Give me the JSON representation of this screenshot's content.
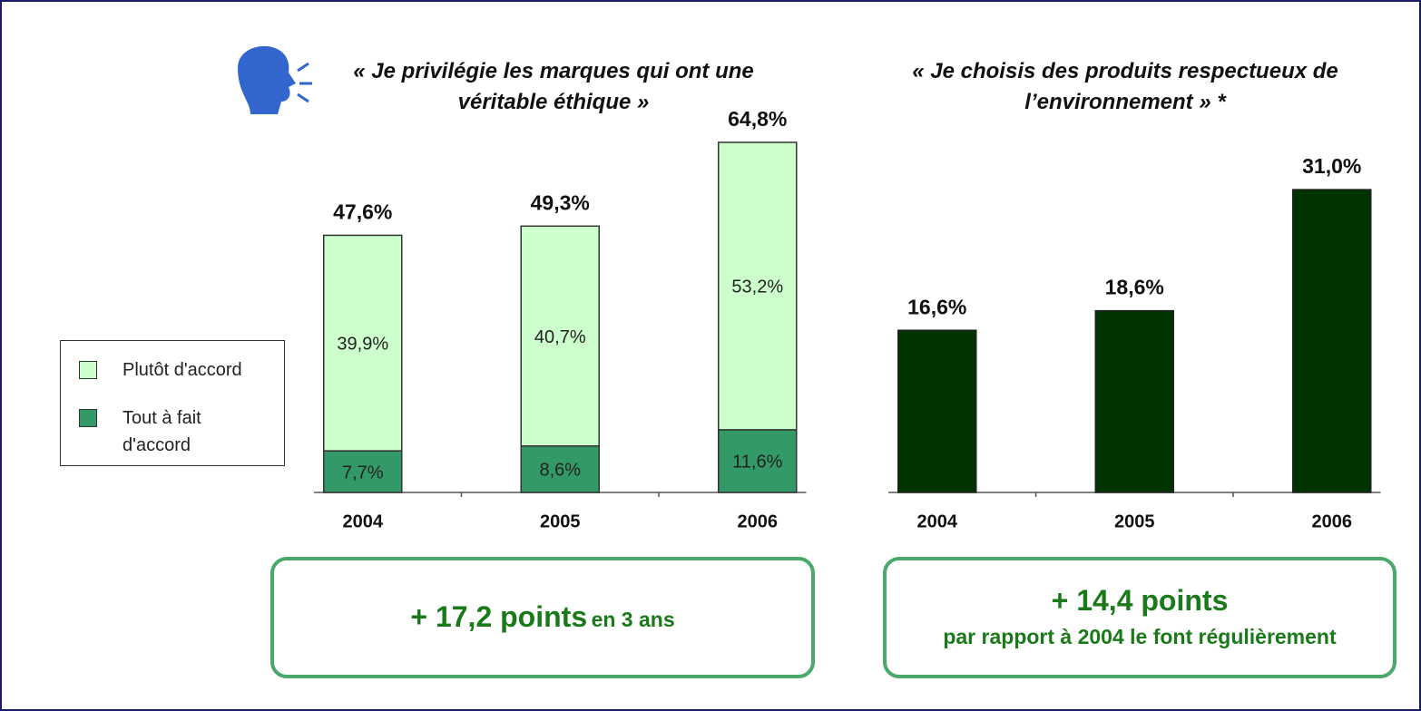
{
  "chart_data": [
    {
      "type": "stacked_bar",
      "title": "« Je privilégie les marques qui ont une véritable éthique »",
      "categories": [
        "2004",
        "2005",
        "2006"
      ],
      "series": [
        {
          "name": "Tout à fait d'accord",
          "color": "#339966",
          "values": [
            7.7,
            8.6,
            11.6
          ],
          "value_labels": [
            "7,7%",
            "8,6%",
            "11,6%"
          ]
        },
        {
          "name": "Plutôt d'accord",
          "color": "#ccffcc",
          "values": [
            39.9,
            40.7,
            53.2
          ],
          "value_labels": [
            "39,9%",
            "40,7%",
            "53,2%"
          ]
        }
      ],
      "total_labels": [
        "47,6%",
        "49,3%",
        "64,8%"
      ],
      "ylim": [
        0,
        70
      ],
      "annotation": {
        "main": "+ 17,2 points",
        "note": "en 3 ans"
      }
    },
    {
      "type": "bar",
      "title": "« Je choisis des produits respectueux de l’environnement » *",
      "categories": [
        "2004",
        "2005",
        "2006"
      ],
      "values": [
        16.6,
        18.6,
        31.0
      ],
      "value_labels": [
        "16,6%",
        "18,6%",
        "31,0%"
      ],
      "color": "#003300",
      "ylim": [
        0,
        35
      ],
      "annotation": {
        "main": "+ 14,4 points",
        "note": "par rapport à 2004 le font régulièrement"
      }
    }
  ]
}
